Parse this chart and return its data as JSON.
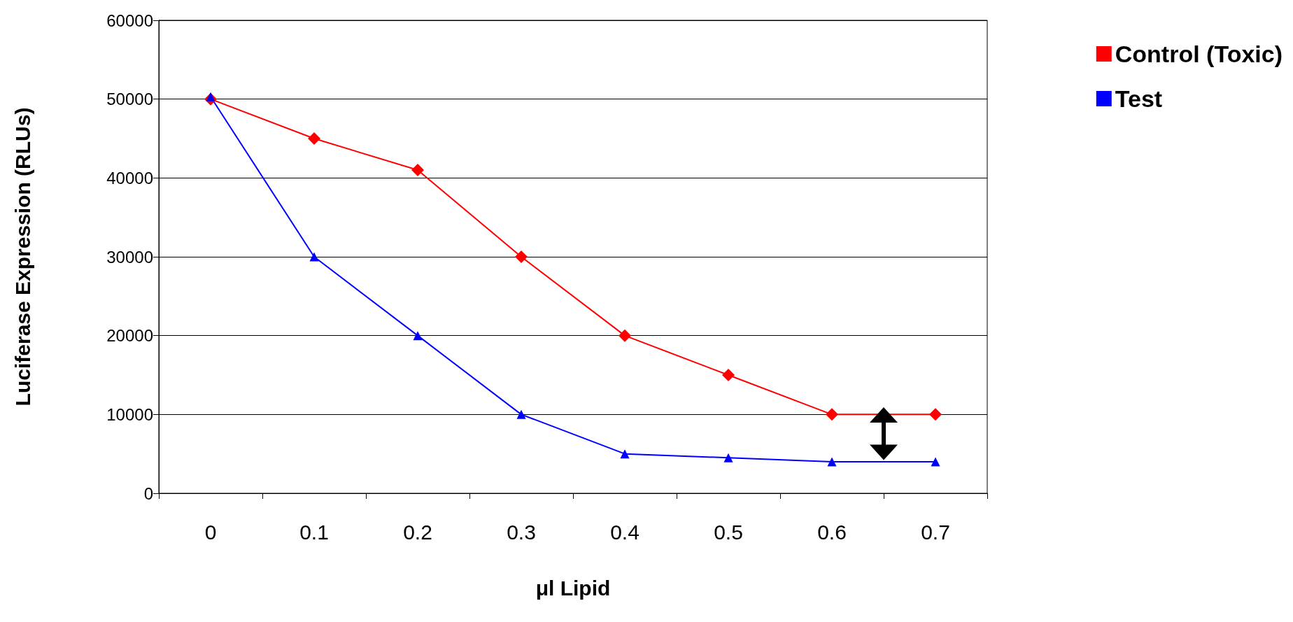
{
  "chart_data": {
    "type": "line",
    "xlabel": "μl Lipid",
    "ylabel": "Luciferase Expression (RLUs)",
    "categories": [
      "0",
      "0.1",
      "0.2",
      "0.3",
      "0.4",
      "0.5",
      "0.6",
      "0.7"
    ],
    "series": [
      {
        "name": "Control (Toxic)",
        "color": "#ff0000",
        "marker": "diamond",
        "values": [
          50000,
          45000,
          41000,
          30000,
          20000,
          15000,
          10000,
          10000
        ]
      },
      {
        "name": "Test",
        "color": "#0000ff",
        "marker": "triangle",
        "values": [
          50300,
          30000,
          20000,
          10000,
          5000,
          4500,
          4000,
          4000
        ]
      }
    ],
    "ylim": [
      0,
      60000
    ],
    "yticks": [
      0,
      10000,
      20000,
      30000,
      40000,
      50000,
      60000
    ],
    "grid": "y",
    "legend": "right",
    "line_style": "solid"
  }
}
